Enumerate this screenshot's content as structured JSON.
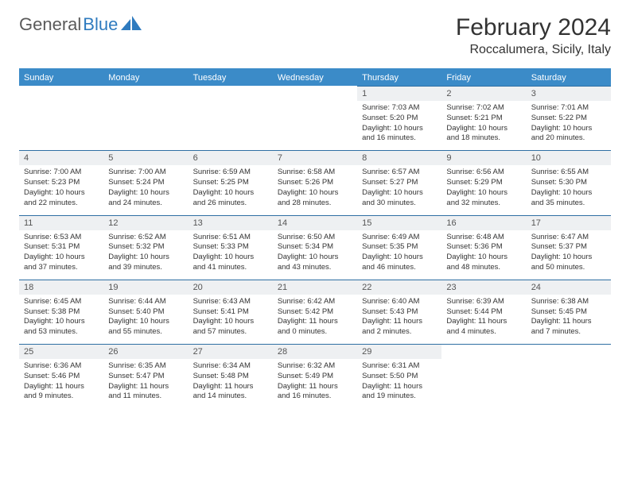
{
  "brand": {
    "part1": "General",
    "part2": "Blue"
  },
  "title": "February 2024",
  "location": "Roccalumera, Sicily, Italy",
  "colors": {
    "header_bg": "#3b8bc8",
    "header_text": "#ffffff",
    "daynum_bg": "#eef0f2",
    "row_border": "#2f6fa3",
    "body_text": "#333333",
    "logo_gray": "#5a5a5a",
    "logo_blue": "#2f7bbf"
  },
  "day_names": [
    "Sunday",
    "Monday",
    "Tuesday",
    "Wednesday",
    "Thursday",
    "Friday",
    "Saturday"
  ],
  "weeks": [
    [
      null,
      null,
      null,
      null,
      {
        "n": "1",
        "sunrise": "7:03 AM",
        "sunset": "5:20 PM",
        "daylight": "10 hours and 16 minutes."
      },
      {
        "n": "2",
        "sunrise": "7:02 AM",
        "sunset": "5:21 PM",
        "daylight": "10 hours and 18 minutes."
      },
      {
        "n": "3",
        "sunrise": "7:01 AM",
        "sunset": "5:22 PM",
        "daylight": "10 hours and 20 minutes."
      }
    ],
    [
      {
        "n": "4",
        "sunrise": "7:00 AM",
        "sunset": "5:23 PM",
        "daylight": "10 hours and 22 minutes."
      },
      {
        "n": "5",
        "sunrise": "7:00 AM",
        "sunset": "5:24 PM",
        "daylight": "10 hours and 24 minutes."
      },
      {
        "n": "6",
        "sunrise": "6:59 AM",
        "sunset": "5:25 PM",
        "daylight": "10 hours and 26 minutes."
      },
      {
        "n": "7",
        "sunrise": "6:58 AM",
        "sunset": "5:26 PM",
        "daylight": "10 hours and 28 minutes."
      },
      {
        "n": "8",
        "sunrise": "6:57 AM",
        "sunset": "5:27 PM",
        "daylight": "10 hours and 30 minutes."
      },
      {
        "n": "9",
        "sunrise": "6:56 AM",
        "sunset": "5:29 PM",
        "daylight": "10 hours and 32 minutes."
      },
      {
        "n": "10",
        "sunrise": "6:55 AM",
        "sunset": "5:30 PM",
        "daylight": "10 hours and 35 minutes."
      }
    ],
    [
      {
        "n": "11",
        "sunrise": "6:53 AM",
        "sunset": "5:31 PM",
        "daylight": "10 hours and 37 minutes."
      },
      {
        "n": "12",
        "sunrise": "6:52 AM",
        "sunset": "5:32 PM",
        "daylight": "10 hours and 39 minutes."
      },
      {
        "n": "13",
        "sunrise": "6:51 AM",
        "sunset": "5:33 PM",
        "daylight": "10 hours and 41 minutes."
      },
      {
        "n": "14",
        "sunrise": "6:50 AM",
        "sunset": "5:34 PM",
        "daylight": "10 hours and 43 minutes."
      },
      {
        "n": "15",
        "sunrise": "6:49 AM",
        "sunset": "5:35 PM",
        "daylight": "10 hours and 46 minutes."
      },
      {
        "n": "16",
        "sunrise": "6:48 AM",
        "sunset": "5:36 PM",
        "daylight": "10 hours and 48 minutes."
      },
      {
        "n": "17",
        "sunrise": "6:47 AM",
        "sunset": "5:37 PM",
        "daylight": "10 hours and 50 minutes."
      }
    ],
    [
      {
        "n": "18",
        "sunrise": "6:45 AM",
        "sunset": "5:38 PM",
        "daylight": "10 hours and 53 minutes."
      },
      {
        "n": "19",
        "sunrise": "6:44 AM",
        "sunset": "5:40 PM",
        "daylight": "10 hours and 55 minutes."
      },
      {
        "n": "20",
        "sunrise": "6:43 AM",
        "sunset": "5:41 PM",
        "daylight": "10 hours and 57 minutes."
      },
      {
        "n": "21",
        "sunrise": "6:42 AM",
        "sunset": "5:42 PM",
        "daylight": "11 hours and 0 minutes."
      },
      {
        "n": "22",
        "sunrise": "6:40 AM",
        "sunset": "5:43 PM",
        "daylight": "11 hours and 2 minutes."
      },
      {
        "n": "23",
        "sunrise": "6:39 AM",
        "sunset": "5:44 PM",
        "daylight": "11 hours and 4 minutes."
      },
      {
        "n": "24",
        "sunrise": "6:38 AM",
        "sunset": "5:45 PM",
        "daylight": "11 hours and 7 minutes."
      }
    ],
    [
      {
        "n": "25",
        "sunrise": "6:36 AM",
        "sunset": "5:46 PM",
        "daylight": "11 hours and 9 minutes."
      },
      {
        "n": "26",
        "sunrise": "6:35 AM",
        "sunset": "5:47 PM",
        "daylight": "11 hours and 11 minutes."
      },
      {
        "n": "27",
        "sunrise": "6:34 AM",
        "sunset": "5:48 PM",
        "daylight": "11 hours and 14 minutes."
      },
      {
        "n": "28",
        "sunrise": "6:32 AM",
        "sunset": "5:49 PM",
        "daylight": "11 hours and 16 minutes."
      },
      {
        "n": "29",
        "sunrise": "6:31 AM",
        "sunset": "5:50 PM",
        "daylight": "11 hours and 19 minutes."
      },
      null,
      null
    ]
  ],
  "labels": {
    "sunrise": "Sunrise:",
    "sunset": "Sunset:",
    "daylight": "Daylight:"
  }
}
